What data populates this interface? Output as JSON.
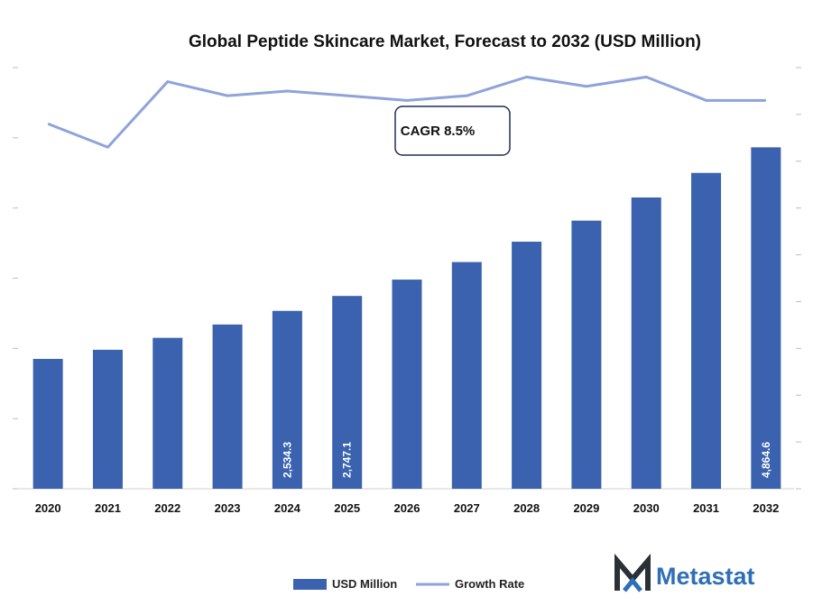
{
  "chart_data": {
    "type": "bar",
    "title": "Global Peptide Skincare Market, Forecast to 2032 (USD Million)",
    "categories": [
      "2020",
      "2021",
      "2022",
      "2023",
      "2024",
      "2025",
      "2026",
      "2027",
      "2028",
      "2029",
      "2030",
      "2031",
      "2032"
    ],
    "series": [
      {
        "name": "USD Million",
        "type": "bar",
        "axis": "left",
        "color": "#3a62ae",
        "values": [
          1850,
          1980,
          2150,
          2340,
          2534.3,
          2747.1,
          2980,
          3230,
          3520,
          3820,
          4150,
          4500,
          4864.6
        ]
      },
      {
        "name": "Growth Rate",
        "type": "line",
        "axis": "right",
        "color": "#8fa3da",
        "values": [
          7.8,
          7.3,
          8.7,
          8.4,
          8.5,
          8.4,
          8.3,
          8.4,
          8.8,
          8.6,
          8.8,
          8.3,
          8.3
        ]
      }
    ],
    "data_labels": [
      {
        "category": "2024",
        "text": "2,534.3"
      },
      {
        "category": "2025",
        "text": "2,747.1"
      },
      {
        "category": "2032",
        "text": "4,864.6"
      }
    ],
    "annotation": "CAGR 8.5%",
    "ylim_left": [
      0,
      6000
    ],
    "ylim_right": [
      0,
      9.0
    ],
    "grid": false,
    "legend": "bottom-center",
    "brand": "Metastat"
  }
}
